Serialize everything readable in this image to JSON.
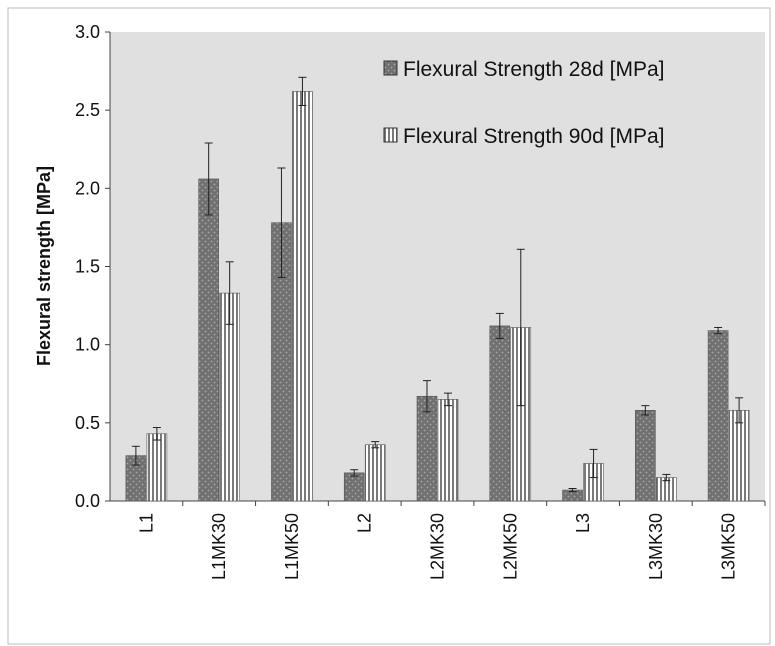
{
  "chart_data": {
    "type": "bar",
    "title": "",
    "xlabel": "",
    "ylabel": "Flexural strength [MPa]",
    "ylim": [
      0,
      3.0
    ],
    "yticks": [
      "0.0",
      "0.5",
      "1.0",
      "1.5",
      "2.0",
      "2.5",
      "3.0"
    ],
    "grid": false,
    "legend_position": "top-right",
    "plot_background": "#e0e0e0",
    "categories": [
      "L1",
      "L1MK30",
      "L1MK50",
      "L2",
      "L2MK30",
      "L2MK50",
      "L3",
      "L3MK30",
      "L3MK50"
    ],
    "series": [
      {
        "name": "Flexural Strength 28d [MPa]",
        "pattern": "dotted",
        "color": "#6e6e6e",
        "values": [
          0.29,
          2.06,
          1.78,
          0.18,
          0.67,
          1.12,
          0.07,
          0.58,
          1.09
        ],
        "errors": [
          0.06,
          0.23,
          0.35,
          0.02,
          0.1,
          0.08,
          0.01,
          0.03,
          0.02
        ]
      },
      {
        "name": "Flexural Strength 90d [MPa]",
        "pattern": "vertical-stripes",
        "color": "#9a9a9a",
        "values": [
          0.43,
          1.33,
          2.62,
          0.36,
          0.65,
          1.11,
          0.24,
          0.15,
          0.58
        ],
        "errors": [
          0.04,
          0.2,
          0.09,
          0.02,
          0.04,
          0.5,
          0.09,
          0.02,
          0.08
        ]
      }
    ]
  }
}
